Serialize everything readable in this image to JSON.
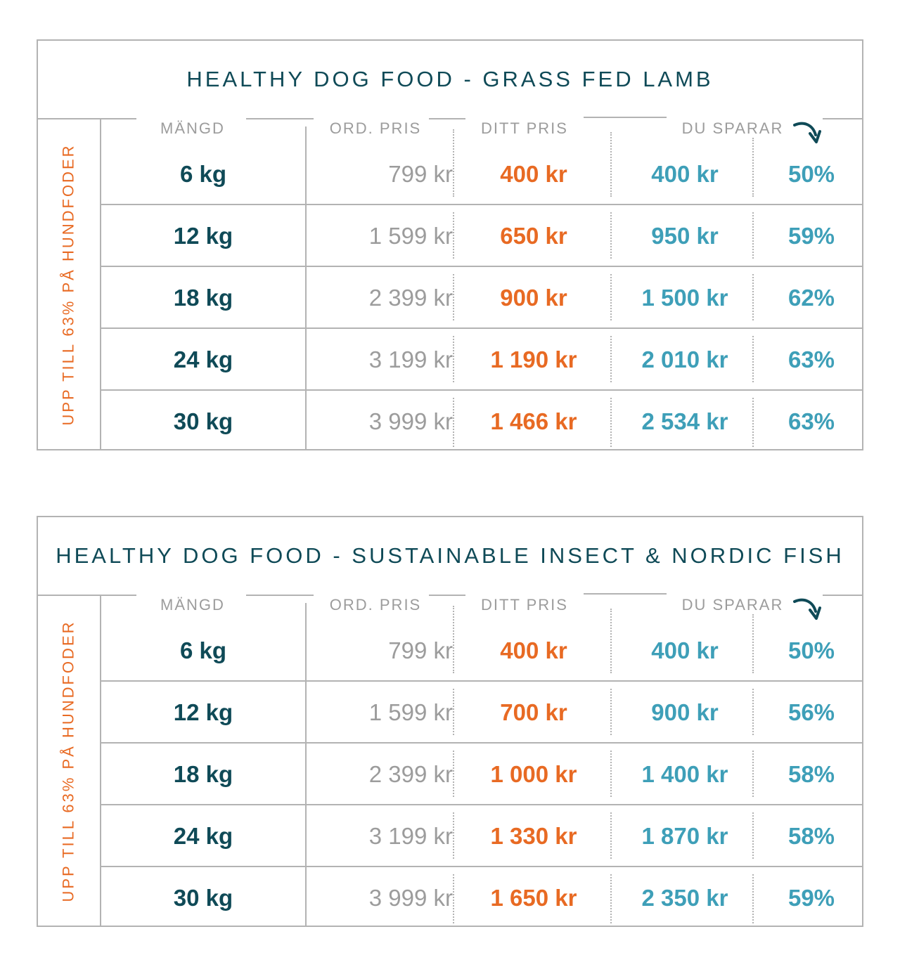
{
  "colors": {
    "teal_dark": "#0f4a57",
    "orange": "#e86a23",
    "blue": "#3e9fb8",
    "gray": "#9c9c9c",
    "line": "#b3b3b3"
  },
  "arrow_icon": "curved-arrow-down-right-icon",
  "tables": [
    {
      "title": "HEALTHY DOG FOOD - GRASS FED LAMB",
      "side_label": "UPP TILL 63% PÅ HUNDFODER",
      "headers": {
        "qty": "MÄNGD",
        "ord": "ORD. PRIS",
        "ditt": "DITT PRIS",
        "save": "DU SPARAR"
      },
      "rows": [
        {
          "qty": "6 kg",
          "ord": "799 kr",
          "ditt": "400 kr",
          "save": "400 kr",
          "pct": "50%"
        },
        {
          "qty": "12 kg",
          "ord": "1 599 kr",
          "ditt": "650 kr",
          "save": "950 kr",
          "pct": "59%"
        },
        {
          "qty": "18 kg",
          "ord": "2 399 kr",
          "ditt": "900 kr",
          "save": "1 500 kr",
          "pct": "62%"
        },
        {
          "qty": "24 kg",
          "ord": "3 199 kr",
          "ditt": "1 190 kr",
          "save": "2 010 kr",
          "pct": "63%"
        },
        {
          "qty": "30 kg",
          "ord": "3 999 kr",
          "ditt": "1 466 kr",
          "save": "2 534 kr",
          "pct": "63%"
        }
      ]
    },
    {
      "title": "HEALTHY DOG FOOD - SUSTAINABLE INSECT & NORDIC FISH",
      "side_label": "UPP TILL 63% PÅ HUNDFODER",
      "headers": {
        "qty": "MÄNGD",
        "ord": "ORD. PRIS",
        "ditt": "DITT PRIS",
        "save": "DU SPARAR"
      },
      "rows": [
        {
          "qty": "6 kg",
          "ord": "799 kr",
          "ditt": "400 kr",
          "save": "400 kr",
          "pct": "50%"
        },
        {
          "qty": "12 kg",
          "ord": "1 599 kr",
          "ditt": "700 kr",
          "save": "900 kr",
          "pct": "56%"
        },
        {
          "qty": "18 kg",
          "ord": "2 399 kr",
          "ditt": "1 000 kr",
          "save": "1 400 kr",
          "pct": "58%"
        },
        {
          "qty": "24 kg",
          "ord": "3 199 kr",
          "ditt": "1 330 kr",
          "save": "1 870 kr",
          "pct": "58%"
        },
        {
          "qty": "30 kg",
          "ord": "3 999 kr",
          "ditt": "1 650 kr",
          "save": "2 350 kr",
          "pct": "59%"
        }
      ]
    }
  ]
}
